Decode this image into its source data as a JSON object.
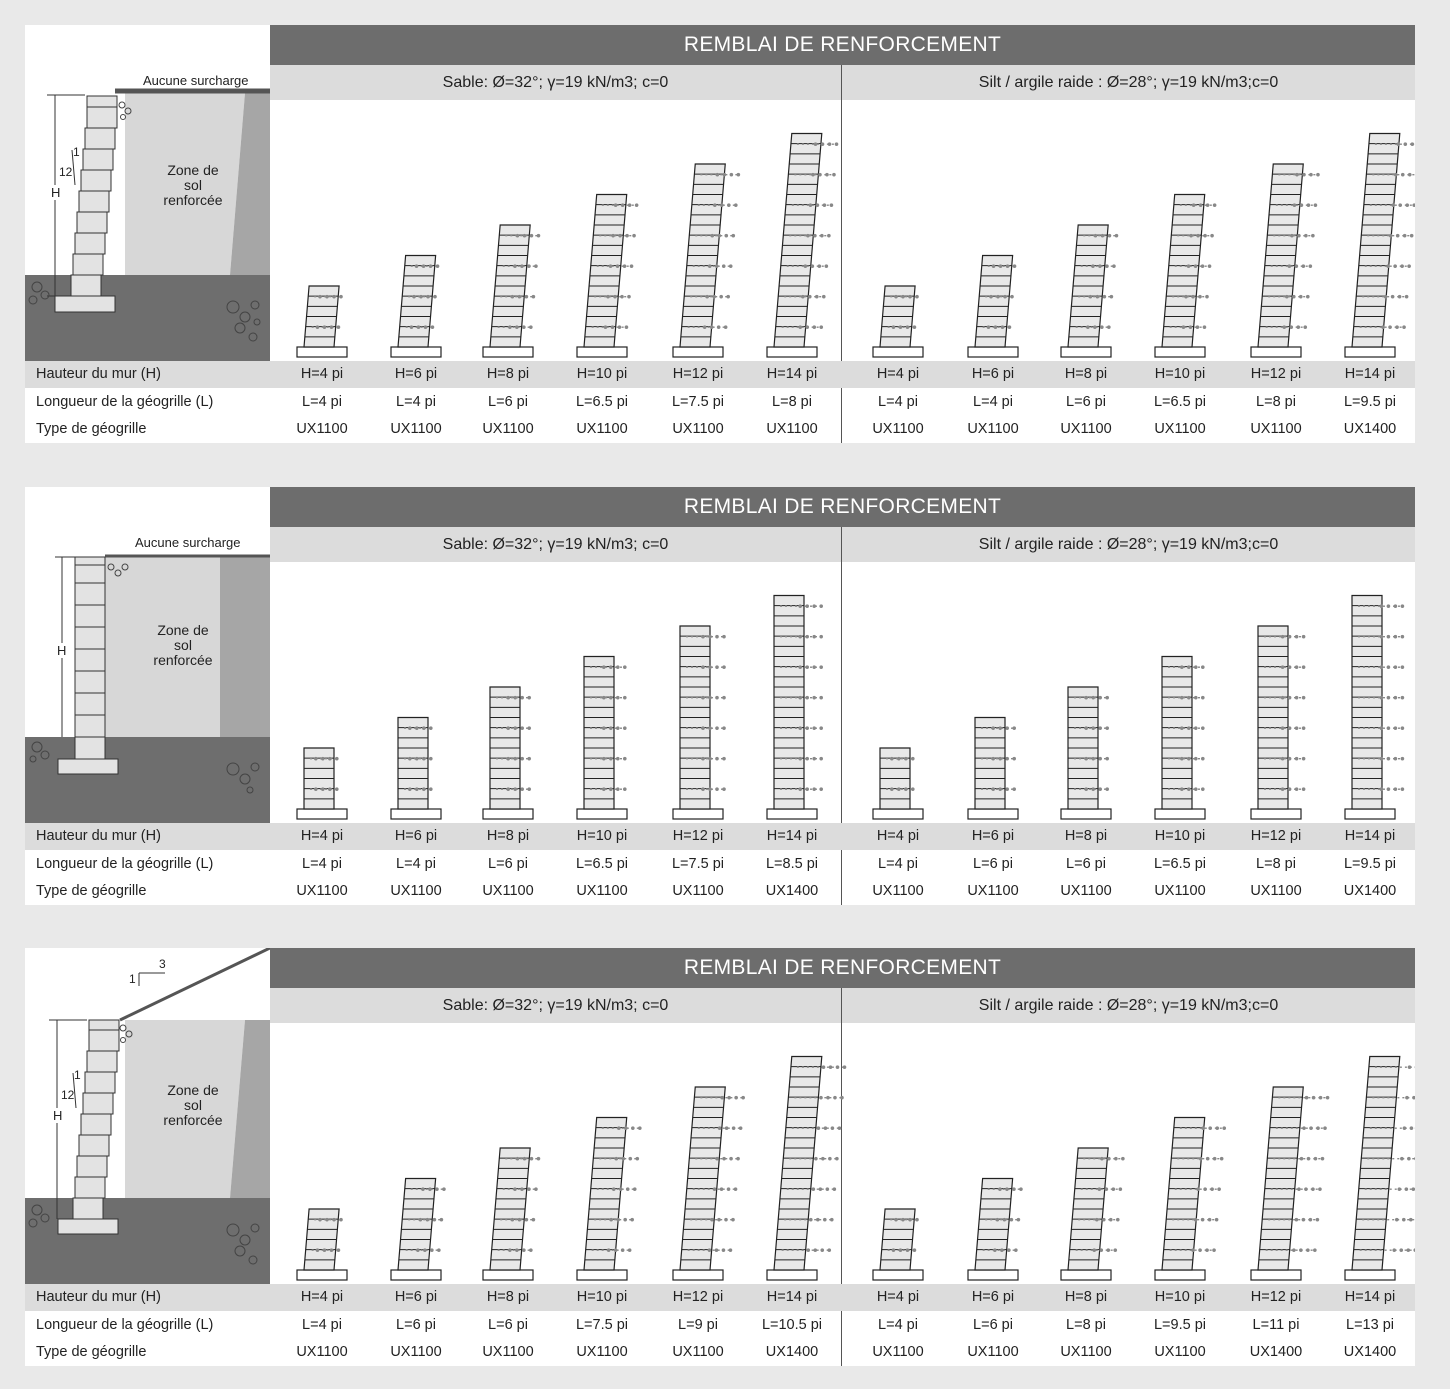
{
  "common": {
    "title": "REMBLAI DE RENFORCEMENT",
    "sand_label": "Sable: Ø=32°; γ=19 kN/m3; c=0",
    "silt_label": "Silt  / argile raide : Ø=28°; γ=19 kN/m3;c=0",
    "row_labels": [
      "Hauteur du mur (H)",
      "Longueur de la géogrille (L)",
      "Type de géogrille"
    ],
    "zone_label": [
      "Zone de",
      "sol",
      "renforcée"
    ],
    "h_label": "H",
    "colors": {
      "title_bg": "#6d6d6d",
      "sub_bg": "#dcdcdc",
      "soil_dark": "#6e6e6e",
      "soil_mid": "#a6a6a6",
      "zone": "#d7d7d7",
      "block": "#e3e3e3",
      "page_bg": "#e9e9e9"
    }
  },
  "panels": [
    {
      "id": "battered-no-surcharge",
      "surcharge": "Aucune surcharge",
      "batter_label": {
        "run": "1",
        "rise": "12"
      },
      "heights": [
        "H=4 pi",
        "H=6 pi",
        "H=8 pi",
        "H=10 pi",
        "H=12 pi",
        "H=14 pi",
        "H=4 pi",
        "H=6 pi",
        "H=8 pi",
        "H=10 pi",
        "H=12 pi",
        "H=14 pi"
      ],
      "lengths": [
        "L=4 pi",
        "L=4 pi",
        "L=6 pi",
        "L=6.5 pi",
        "L=7.5 pi",
        "L=8 pi",
        "L=4 pi",
        "L=4 pi",
        "L=6 pi",
        "L=6.5 pi",
        "L=8 pi",
        "L=9.5 pi"
      ],
      "types": [
        "UX1100",
        "UX1100",
        "UX1100",
        "UX1100",
        "UX1100",
        "UX1100",
        "UX1100",
        "UX1100",
        "UX1100",
        "UX1100",
        "UX1100",
        "UX1400"
      ]
    },
    {
      "id": "vertical-no-surcharge",
      "surcharge": "Aucune surcharge",
      "heights": [
        "H=4 pi",
        "H=6 pi",
        "H=8 pi",
        "H=10 pi",
        "H=12 pi",
        "H=14 pi",
        "H=4 pi",
        "H=6 pi",
        "H=8 pi",
        "H=10 pi",
        "H=12 pi",
        "H=14 pi"
      ],
      "lengths": [
        "L=4 pi",
        "L=4 pi",
        "L=6 pi",
        "L=6.5 pi",
        "L=7.5 pi",
        "L=8.5 pi",
        "L=4 pi",
        "L=6 pi",
        "L=6 pi",
        "L=6.5 pi",
        "L=8 pi",
        "L=9.5 pi"
      ],
      "types": [
        "UX1100",
        "UX1100",
        "UX1100",
        "UX1100",
        "UX1100",
        "UX1400",
        "UX1100",
        "UX1100",
        "UX1100",
        "UX1100",
        "UX1100",
        "UX1400"
      ]
    },
    {
      "id": "battered-slope-surcharge",
      "batter_label": {
        "run": "1",
        "rise": "12"
      },
      "slope_label": {
        "run": "3",
        "rise": "1"
      },
      "heights": [
        "H=4 pi",
        "H=6 pi",
        "H=8 pi",
        "H=10 pi",
        "H=12 pi",
        "H=14 pi",
        "H=4 pi",
        "H=6 pi",
        "H=8 pi",
        "H=10 pi",
        "H=12 pi",
        "H=14 pi"
      ],
      "lengths": [
        "L=4 pi",
        "L=6 pi",
        "L=6 pi",
        "L=7.5 pi",
        "L=9 pi",
        "L=10.5 pi",
        "L=4 pi",
        "L=6 pi",
        "L=8 pi",
        "L=9.5 pi",
        "L=11 pi",
        "L=13 pi"
      ],
      "types": [
        "UX1100",
        "UX1100",
        "UX1100",
        "UX1100",
        "UX1100",
        "UX1400",
        "UX1100",
        "UX1100",
        "UX1100",
        "UX1100",
        "UX1400",
        "UX1400"
      ]
    }
  ]
}
